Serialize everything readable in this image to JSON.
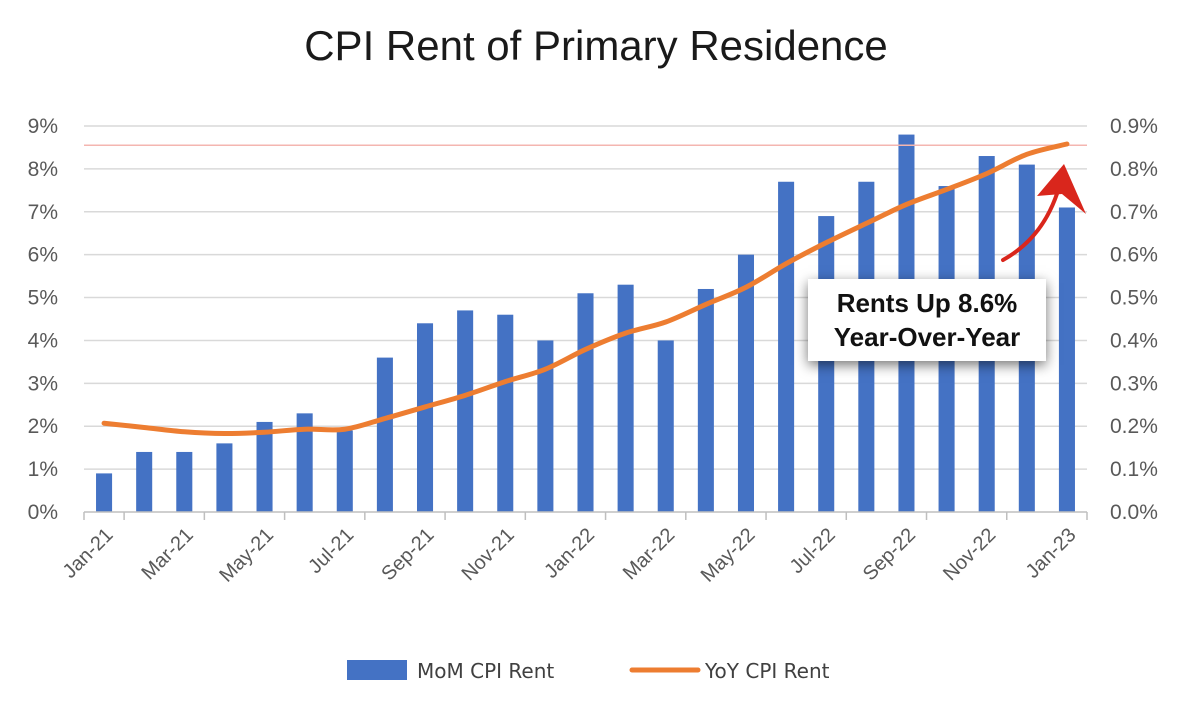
{
  "chart_data": {
    "type": "bar+line",
    "title": "CPI Rent of Primary Residence",
    "categories": [
      "Jan-21",
      "Feb-21",
      "Mar-21",
      "Apr-21",
      "May-21",
      "Jun-21",
      "Jul-21",
      "Aug-21",
      "Sep-21",
      "Oct-21",
      "Nov-21",
      "Dec-21",
      "Jan-22",
      "Feb-22",
      "Mar-22",
      "Apr-22",
      "May-22",
      "Jun-22",
      "Jul-22",
      "Aug-22",
      "Sep-22",
      "Oct-22",
      "Nov-22",
      "Dec-22",
      "Jan-23"
    ],
    "x_tick_labels": [
      "Jan-21",
      "Mar-21",
      "May-21",
      "Jul-21",
      "Sep-21",
      "Nov-21",
      "Jan-22",
      "Mar-22",
      "May-22",
      "Jul-22",
      "Sep-22",
      "Nov-22",
      "Jan-23"
    ],
    "series": [
      {
        "name": "MoM CPI Rent",
        "type": "bar",
        "axis": "right",
        "color": "#4472C4",
        "values": [
          0.09,
          0.14,
          0.14,
          0.16,
          0.21,
          0.23,
          0.19,
          0.36,
          0.44,
          0.47,
          0.46,
          0.4,
          0.51,
          0.53,
          0.4,
          0.52,
          0.6,
          0.77,
          0.69,
          0.77,
          0.88,
          0.76,
          0.83,
          0.81,
          0.71
        ]
      },
      {
        "name": "YoY CPI Rent",
        "type": "line",
        "axis": "left",
        "color": "#ED7D31",
        "values": [
          2.07,
          1.97,
          1.87,
          1.83,
          1.86,
          1.93,
          1.93,
          2.18,
          2.45,
          2.72,
          3.04,
          3.33,
          3.79,
          4.17,
          4.43,
          4.84,
          5.24,
          5.79,
          6.28,
          6.73,
          7.17,
          7.52,
          7.89,
          8.34,
          8.58
        ]
      }
    ],
    "y_left": {
      "min": 0,
      "max": 9,
      "step": 1,
      "ticks": [
        "0%",
        "1%",
        "2%",
        "3%",
        "4%",
        "5%",
        "6%",
        "7%",
        "8%",
        "9%"
      ]
    },
    "y_right": {
      "min": 0,
      "max": 0.9,
      "step": 0.1,
      "ticks": [
        "0.0%",
        "0.1%",
        "0.2%",
        "0.3%",
        "0.4%",
        "0.5%",
        "0.6%",
        "0.7%",
        "0.8%",
        "0.9%"
      ]
    },
    "reference_line": {
      "value": 8.55,
      "axis": "left",
      "color": "#F4B6B0"
    },
    "annotation": {
      "lines": [
        "Rents Up 8.6%",
        "Year-Over-Year"
      ],
      "arrow_color": "#D9261C"
    },
    "grid": true,
    "legend_position": "bottom"
  }
}
